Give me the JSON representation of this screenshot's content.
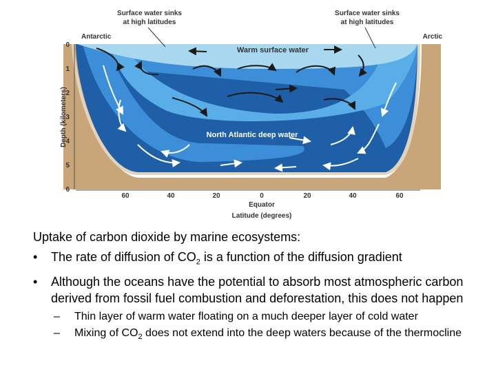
{
  "diagram": {
    "top_labels": [
      "Surface water sinks\nat high latitudes",
      "Surface water sinks\nat high latitudes"
    ],
    "pole_labels": [
      "Antarctic",
      "Arctic"
    ],
    "water_labels": [
      "Warm surface water",
      "North Atlantic deep water"
    ],
    "y_axis_label": "Depth (kilometers)",
    "y_ticks": [
      0,
      1,
      2,
      3,
      4,
      5,
      6
    ],
    "x_ticks": [
      60,
      40,
      20,
      0,
      20,
      40,
      60
    ],
    "x_center_label": "Equator",
    "x_axis_label": "Latitude (degrees)"
  },
  "text": {
    "heading": "Uptake of carbon dioxide by marine ecosystems:",
    "bullets": [
      [
        "The rate of diffusion of CO",
        "2",
        " is a function of the diffusion gradient"
      ],
      [
        "Although the oceans have the potential to absorb most atmospheric carbon derived from fossil fuel combustion and deforestation, this does not happen"
      ]
    ],
    "sub_bullets": [
      [
        "Thin layer of warm water floating on a much deeper layer of cold water"
      ],
      [
        "Mixing of CO",
        "2",
        " does not extend into the deep waters because of the thermocline"
      ]
    ]
  }
}
